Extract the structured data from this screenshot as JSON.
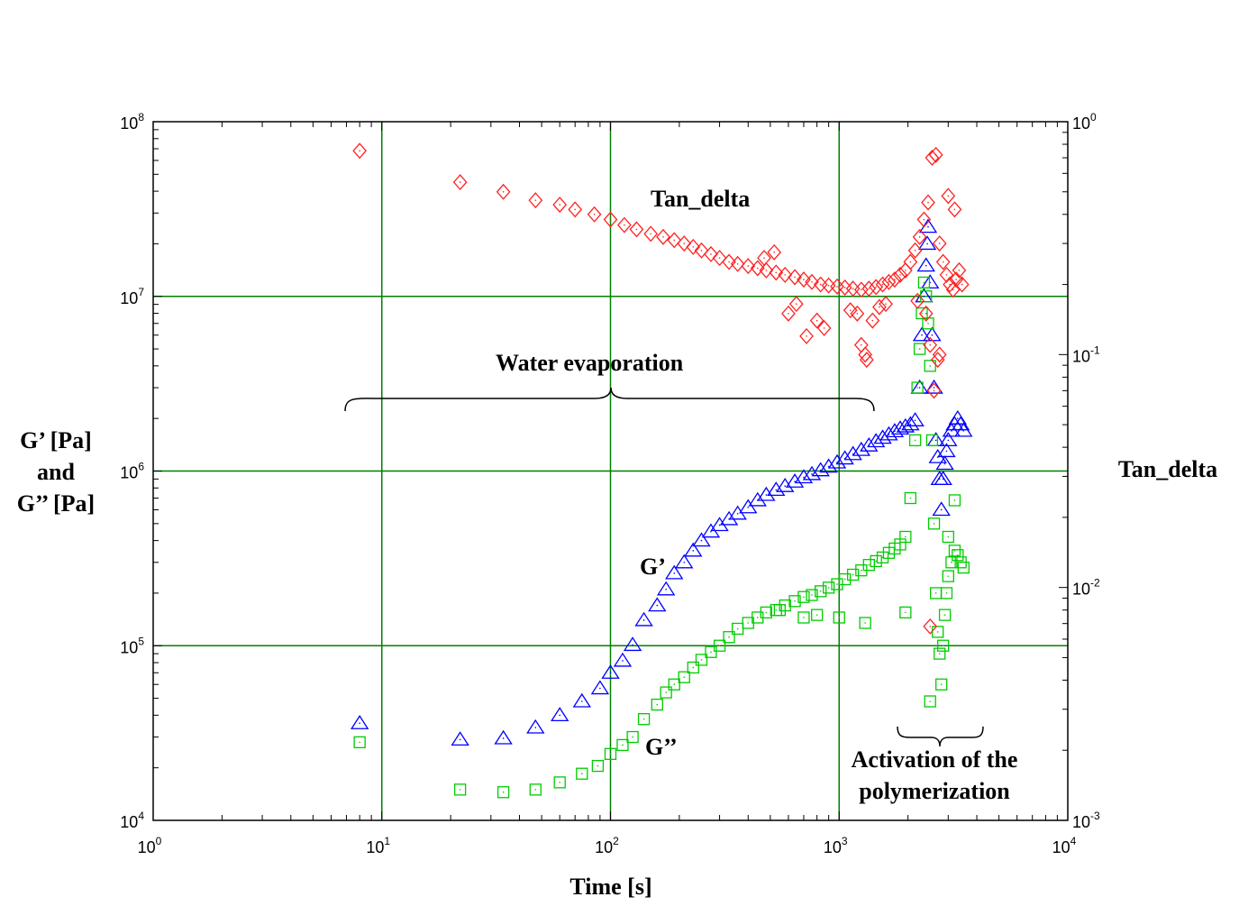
{
  "chart_data": {
    "type": "scatter",
    "x_scale": "log",
    "y_scale": "log",
    "y2_scale": "log",
    "xlim": [
      1,
      10000
    ],
    "ylim": [
      10000,
      100000000
    ],
    "y2lim": [
      0.001,
      1
    ],
    "grid": true,
    "xlabel": "Time [s]",
    "ylabel_lines": [
      "G’ [Pa]",
      "and",
      "G’’ [Pa]"
    ],
    "y2label": "Tan_delta",
    "x_ticks": [
      {
        "base": "10",
        "exp": "0",
        "value": 1
      },
      {
        "base": "10",
        "exp": "1",
        "value": 10
      },
      {
        "base": "10",
        "exp": "2",
        "value": 100
      },
      {
        "base": "10",
        "exp": "3",
        "value": 1000
      },
      {
        "base": "10",
        "exp": "4",
        "value": 10000
      }
    ],
    "y_ticks": [
      {
        "base": "10",
        "exp": "4",
        "value": 10000
      },
      {
        "base": "10",
        "exp": "5",
        "value": 100000
      },
      {
        "base": "10",
        "exp": "6",
        "value": 1000000
      },
      {
        "base": "10",
        "exp": "7",
        "value": 10000000
      },
      {
        "base": "10",
        "exp": "8",
        "value": 100000000
      }
    ],
    "y2_ticks": [
      {
        "base": "10",
        "exp": "-3",
        "value": 0.001
      },
      {
        "base": "10",
        "exp": "-2",
        "value": 0.01
      },
      {
        "base": "10",
        "exp": "-1",
        "value": 0.1
      },
      {
        "base": "10",
        "exp": "0",
        "value": 1
      }
    ],
    "colors": {
      "G_prime": "#0000ff",
      "G_double_prime": "#00cc00",
      "tan_delta": "#ff2020",
      "grid": "#008000"
    },
    "series": [
      {
        "name": "G’",
        "axis": "left",
        "marker": "triangle",
        "color": "#0000ff",
        "points": [
          [
            8,
            36000
          ],
          [
            22,
            29000
          ],
          [
            34,
            29500
          ],
          [
            47,
            34000
          ],
          [
            60,
            40000
          ],
          [
            75,
            48000
          ],
          [
            90,
            57000
          ],
          [
            100,
            70000
          ],
          [
            113,
            82000
          ],
          [
            125,
            101000
          ],
          [
            140,
            140000
          ],
          [
            160,
            170000
          ],
          [
            175,
            210000
          ],
          [
            190,
            260000
          ],
          [
            210,
            300000
          ],
          [
            230,
            350000
          ],
          [
            250,
            400000
          ],
          [
            275,
            450000
          ],
          [
            300,
            490000
          ],
          [
            330,
            530000
          ],
          [
            360,
            570000
          ],
          [
            400,
            620000
          ],
          [
            440,
            680000
          ],
          [
            480,
            730000
          ],
          [
            530,
            780000
          ],
          [
            580,
            820000
          ],
          [
            640,
            870000
          ],
          [
            700,
            920000
          ],
          [
            760,
            960000
          ],
          [
            830,
            1010000
          ],
          [
            900,
            1060000
          ],
          [
            980,
            1120000
          ],
          [
            1060,
            1180000
          ],
          [
            1150,
            1250000
          ],
          [
            1250,
            1320000
          ],
          [
            1350,
            1400000
          ],
          [
            1450,
            1480000
          ],
          [
            1550,
            1550000
          ],
          [
            1650,
            1620000
          ],
          [
            1750,
            1690000
          ],
          [
            1850,
            1750000
          ],
          [
            1950,
            1800000
          ],
          [
            2050,
            1850000
          ],
          [
            2150,
            1950000
          ],
          [
            2250,
            3000000
          ],
          [
            2300,
            6000000
          ],
          [
            2350,
            10000000
          ],
          [
            2400,
            15000000
          ],
          [
            2430,
            20000000
          ],
          [
            2450,
            25000000
          ],
          [
            2500,
            12000000
          ],
          [
            2550,
            6000000
          ],
          [
            2600,
            3000000
          ],
          [
            2650,
            1500000
          ],
          [
            2700,
            1200000
          ],
          [
            2750,
            900000
          ],
          [
            2800,
            600000
          ],
          [
            2850,
            900000
          ],
          [
            2900,
            1100000
          ],
          [
            2950,
            1300000
          ],
          [
            3000,
            1500000
          ],
          [
            3100,
            1700000
          ],
          [
            3200,
            1850000
          ],
          [
            3300,
            2000000
          ],
          [
            3400,
            1850000
          ],
          [
            3500,
            1700000
          ]
        ]
      },
      {
        "name": "G’’",
        "axis": "left",
        "marker": "square",
        "color": "#00cc00",
        "points": [
          [
            8,
            28000
          ],
          [
            22,
            15000
          ],
          [
            34,
            14500
          ],
          [
            47,
            15000
          ],
          [
            60,
            16500
          ],
          [
            75,
            18500
          ],
          [
            88,
            20500
          ],
          [
            100,
            24000
          ],
          [
            113,
            27000
          ],
          [
            125,
            30000
          ],
          [
            140,
            38000
          ],
          [
            160,
            46000
          ],
          [
            175,
            54000
          ],
          [
            190,
            60000
          ],
          [
            210,
            66000
          ],
          [
            230,
            75000
          ],
          [
            250,
            83000
          ],
          [
            275,
            92000
          ],
          [
            300,
            100000
          ],
          [
            330,
            112000
          ],
          [
            360,
            125000
          ],
          [
            400,
            135000
          ],
          [
            440,
            145000
          ],
          [
            480,
            155000
          ],
          [
            530,
            160000
          ],
          [
            580,
            170000
          ],
          [
            640,
            180000
          ],
          [
            700,
            190000
          ],
          [
            760,
            195000
          ],
          [
            830,
            205000
          ],
          [
            900,
            215000
          ],
          [
            980,
            225000
          ],
          [
            1060,
            240000
          ],
          [
            1150,
            255000
          ],
          [
            1250,
            270000
          ],
          [
            1350,
            290000
          ],
          [
            1450,
            305000
          ],
          [
            1550,
            320000
          ],
          [
            1650,
            340000
          ],
          [
            1750,
            360000
          ],
          [
            1850,
            380000
          ],
          [
            1950,
            420000
          ],
          [
            2050,
            700000
          ],
          [
            2150,
            1500000
          ],
          [
            2200,
            3000000
          ],
          [
            2250,
            5000000
          ],
          [
            2300,
            8000000
          ],
          [
            2350,
            12000000
          ],
          [
            2400,
            10000000
          ],
          [
            2450,
            7000000
          ],
          [
            2500,
            4000000
          ],
          [
            2550,
            1500000
          ],
          [
            2600,
            500000
          ],
          [
            2650,
            200000
          ],
          [
            2700,
            120000
          ],
          [
            2750,
            90000
          ],
          [
            2800,
            60000
          ],
          [
            2500,
            48000
          ],
          [
            2850,
            100000
          ],
          [
            2900,
            150000
          ],
          [
            2950,
            200000
          ],
          [
            3000,
            250000
          ],
          [
            3100,
            300000
          ],
          [
            3200,
            350000
          ],
          [
            3300,
            330000
          ],
          [
            3400,
            300000
          ],
          [
            3500,
            280000
          ],
          [
            550,
            160000
          ],
          [
            700,
            145000
          ],
          [
            800,
            150000
          ],
          [
            1300,
            135000
          ],
          [
            1950,
            155000
          ],
          [
            3200,
            680000
          ],
          [
            1000,
            145000
          ],
          [
            3000,
            420000
          ]
        ]
      },
      {
        "name": "Tan_delta",
        "axis": "right",
        "marker": "diamond",
        "color": "#ff2020",
        "points": [
          [
            8,
            0.75
          ],
          [
            22,
            0.55
          ],
          [
            34,
            0.5
          ],
          [
            47,
            0.46
          ],
          [
            60,
            0.44
          ],
          [
            70,
            0.42
          ],
          [
            85,
            0.4
          ],
          [
            100,
            0.38
          ],
          [
            115,
            0.36
          ],
          [
            130,
            0.345
          ],
          [
            150,
            0.33
          ],
          [
            170,
            0.32
          ],
          [
            190,
            0.31
          ],
          [
            210,
            0.3
          ],
          [
            230,
            0.29
          ],
          [
            250,
            0.28
          ],
          [
            275,
            0.27
          ],
          [
            300,
            0.26
          ],
          [
            330,
            0.25
          ],
          [
            360,
            0.245
          ],
          [
            400,
            0.24
          ],
          [
            440,
            0.235
          ],
          [
            480,
            0.23
          ],
          [
            530,
            0.225
          ],
          [
            580,
            0.22
          ],
          [
            640,
            0.215
          ],
          [
            700,
            0.21
          ],
          [
            760,
            0.205
          ],
          [
            830,
            0.2
          ],
          [
            900,
            0.198
          ],
          [
            980,
            0.196
          ],
          [
            1060,
            0.194
          ],
          [
            1150,
            0.192
          ],
          [
            1250,
            0.19
          ],
          [
            1350,
            0.192
          ],
          [
            1450,
            0.195
          ],
          [
            1550,
            0.2
          ],
          [
            1650,
            0.205
          ],
          [
            1750,
            0.21
          ],
          [
            1850,
            0.22
          ],
          [
            1950,
            0.23
          ],
          [
            2050,
            0.25
          ],
          [
            2150,
            0.28
          ],
          [
            2250,
            0.32
          ],
          [
            2350,
            0.38
          ],
          [
            2450,
            0.45
          ],
          [
            2550,
            0.7
          ],
          [
            2650,
            0.72
          ],
          [
            2750,
            0.3
          ],
          [
            2850,
            0.25
          ],
          [
            2950,
            0.22
          ],
          [
            3050,
            0.2
          ],
          [
            3150,
            0.19
          ],
          [
            3250,
            0.21
          ],
          [
            3350,
            0.23
          ],
          [
            3450,
            0.2
          ],
          [
            470,
            0.26
          ],
          [
            520,
            0.275
          ],
          [
            600,
            0.15
          ],
          [
            650,
            0.165
          ],
          [
            720,
            0.12
          ],
          [
            800,
            0.14
          ],
          [
            860,
            0.13
          ],
          [
            1120,
            0.155
          ],
          [
            1200,
            0.15
          ],
          [
            1250,
            0.11
          ],
          [
            1300,
            0.1
          ],
          [
            1320,
            0.095
          ],
          [
            1400,
            0.14
          ],
          [
            1500,
            0.16
          ],
          [
            1600,
            0.165
          ],
          [
            2200,
            0.17
          ],
          [
            2400,
            0.15
          ],
          [
            2500,
            0.11
          ],
          [
            2600,
            0.07
          ],
          [
            2700,
            0.095
          ],
          [
            2750,
            0.1
          ],
          [
            2500,
            0.0068
          ],
          [
            3000,
            0.48
          ],
          [
            3200,
            0.42
          ]
        ]
      }
    ],
    "annotations": [
      {
        "id": "tan-delta-annotation",
        "text": "Tan_delta"
      },
      {
        "id": "water-evaporation-annotation",
        "text": "Water evaporation"
      },
      {
        "id": "g-prime-annotation",
        "text": "G’"
      },
      {
        "id": "g-double-prime-annotation",
        "text": "G’’"
      },
      {
        "id": "activation-annotation-line1",
        "text": "Activation of the"
      },
      {
        "id": "activation-annotation-line2",
        "text": "polymerization"
      }
    ]
  }
}
